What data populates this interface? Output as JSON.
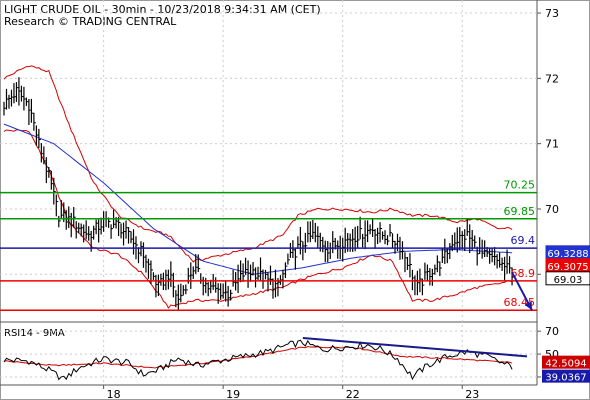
{
  "header": {
    "title": "LIGHT CRUDE OIL - 30min - 10/23/2018 9:34:31 AM (CET)",
    "subtitle": "Research © TRADING CENTRAL"
  },
  "colors": {
    "price": "#000000",
    "bollinger": "#d40000",
    "ma": "#2233cc",
    "resistance": "#009900",
    "pivot": "#1a1aaa",
    "support": "#ee0000",
    "grid": "#cccccc",
    "rsi": "#000000",
    "rsi_ma": "#cc0000",
    "trendline": "#1a1a88"
  },
  "chart_data": [
    {
      "type": "line",
      "panel": "price",
      "y_axis": {
        "min": 68.3,
        "max": 73.2,
        "ticks": [
          69,
          70,
          71,
          72,
          73
        ]
      },
      "x_axis": {
        "start": 0,
        "end": 210,
        "ticks": [
          {
            "label": "18",
            "x": 40
          },
          {
            "label": "19",
            "x": 88
          },
          {
            "label": "22",
            "x": 136
          },
          {
            "label": "23",
            "x": 184
          }
        ]
      },
      "grid": true,
      "levels": [
        {
          "value": 70.25,
          "label": "70.25",
          "role": "resistance"
        },
        {
          "value": 69.85,
          "label": "69.85",
          "role": "resistance"
        },
        {
          "value": 69.4,
          "label": "69.4",
          "role": "pivot"
        },
        {
          "value": 68.9,
          "label": "68.9",
          "role": "support"
        },
        {
          "value": 68.45,
          "label": "68.45",
          "role": "support"
        }
      ],
      "price_markers": [
        {
          "value": 69.3288,
          "label": "69.3288",
          "color": "#2233cc"
        },
        {
          "value": 69.3075,
          "label": "69.3075",
          "color": "#ee0000"
        },
        {
          "value": 69.03,
          "label": "69.03",
          "color": "#000000"
        }
      ],
      "price_anchors": [
        [
          0,
          71.6
        ],
        [
          5,
          71.8
        ],
        [
          10,
          71.6
        ],
        [
          14,
          71.0
        ],
        [
          18,
          70.5
        ],
        [
          22,
          69.9
        ],
        [
          28,
          69.8
        ],
        [
          34,
          69.6
        ],
        [
          40,
          69.8
        ],
        [
          46,
          69.75
        ],
        [
          52,
          69.5
        ],
        [
          56,
          69.3
        ],
        [
          62,
          68.8
        ],
        [
          66,
          69.0
        ],
        [
          70,
          68.6
        ],
        [
          76,
          69.1
        ],
        [
          82,
          68.8
        ],
        [
          90,
          68.7
        ],
        [
          96,
          69.0
        ],
        [
          100,
          69.05
        ],
        [
          106,
          68.9
        ],
        [
          110,
          68.8
        ],
        [
          114,
          69.2
        ],
        [
          118,
          69.4
        ],
        [
          124,
          69.6
        ],
        [
          130,
          69.4
        ],
        [
          136,
          69.5
        ],
        [
          142,
          69.6
        ],
        [
          148,
          69.7
        ],
        [
          152,
          69.6
        ],
        [
          158,
          69.5
        ],
        [
          162,
          69.2
        ],
        [
          166,
          68.8
        ],
        [
          170,
          69.0
        ],
        [
          176,
          69.2
        ],
        [
          180,
          69.5
        ],
        [
          186,
          69.6
        ],
        [
          192,
          69.3
        ],
        [
          198,
          69.2
        ],
        [
          204,
          69.03
        ]
      ],
      "ma_anchors": [
        [
          0,
          71.3
        ],
        [
          20,
          71.0
        ],
        [
          40,
          70.4
        ],
        [
          60,
          69.7
        ],
        [
          80,
          69.2
        ],
        [
          100,
          69.0
        ],
        [
          120,
          69.1
        ],
        [
          140,
          69.25
        ],
        [
          160,
          69.35
        ],
        [
          180,
          69.38
        ],
        [
          204,
          69.33
        ]
      ],
      "bollinger_upper": [
        [
          0,
          72.0
        ],
        [
          10,
          72.2
        ],
        [
          18,
          72.1
        ],
        [
          26,
          71.3
        ],
        [
          36,
          70.4
        ],
        [
          46,
          69.9
        ],
        [
          56,
          69.7
        ],
        [
          66,
          69.6
        ],
        [
          76,
          69.2
        ],
        [
          88,
          69.3
        ],
        [
          100,
          69.4
        ],
        [
          112,
          69.6
        ],
        [
          118,
          69.9
        ],
        [
          126,
          70.0
        ],
        [
          136,
          70.0
        ],
        [
          148,
          69.95
        ],
        [
          156,
          70.0
        ],
        [
          164,
          69.9
        ],
        [
          172,
          69.9
        ],
        [
          182,
          69.8
        ],
        [
          190,
          69.85
        ],
        [
          198,
          69.7
        ],
        [
          204,
          69.7
        ]
      ],
      "bollinger_lower": [
        [
          0,
          71.2
        ],
        [
          10,
          71.2
        ],
        [
          18,
          70.6
        ],
        [
          26,
          69.8
        ],
        [
          36,
          69.4
        ],
        [
          46,
          69.3
        ],
        [
          56,
          69.0
        ],
        [
          66,
          68.5
        ],
        [
          76,
          68.6
        ],
        [
          88,
          68.6
        ],
        [
          100,
          68.7
        ],
        [
          112,
          68.8
        ],
        [
          118,
          68.9
        ],
        [
          126,
          69.0
        ],
        [
          136,
          69.1
        ],
        [
          148,
          69.3
        ],
        [
          156,
          69.2
        ],
        [
          164,
          68.6
        ],
        [
          172,
          68.6
        ],
        [
          182,
          68.7
        ],
        [
          190,
          68.8
        ],
        [
          198,
          68.85
        ],
        [
          204,
          68.9
        ]
      ],
      "forecast_arrow": {
        "from": [
          204,
          69.03
        ],
        "to": [
          212,
          68.45
        ]
      }
    },
    {
      "type": "line",
      "panel": "rsi",
      "title": "RSI14 - 9MA",
      "y_axis": {
        "min": 23,
        "max": 78,
        "ticks": [
          30,
          50,
          70
        ]
      },
      "grid": true,
      "price_markers": [
        {
          "value": 42.5094,
          "label": "42.5094",
          "color": "#cc0000"
        },
        {
          "value": 39.0367,
          "label": "39.0367",
          "color": "#1a1aaa"
        }
      ],
      "rsi_anchors": [
        [
          0,
          45
        ],
        [
          10,
          44
        ],
        [
          18,
          36
        ],
        [
          24,
          28
        ],
        [
          30,
          38
        ],
        [
          40,
          46
        ],
        [
          50,
          42
        ],
        [
          56,
          32
        ],
        [
          62,
          36
        ],
        [
          70,
          46
        ],
        [
          78,
          40
        ],
        [
          86,
          44
        ],
        [
          96,
          48
        ],
        [
          106,
          52
        ],
        [
          114,
          58
        ],
        [
          120,
          60
        ],
        [
          128,
          54
        ],
        [
          136,
          56
        ],
        [
          146,
          58
        ],
        [
          152,
          54
        ],
        [
          158,
          46
        ],
        [
          164,
          30
        ],
        [
          170,
          40
        ],
        [
          178,
          48
        ],
        [
          186,
          52
        ],
        [
          194,
          48
        ],
        [
          200,
          42
        ],
        [
          204,
          39
        ]
      ],
      "rsi_ma_anchors": [
        [
          0,
          44
        ],
        [
          20,
          40
        ],
        [
          40,
          42
        ],
        [
          60,
          38
        ],
        [
          80,
          42
        ],
        [
          100,
          48
        ],
        [
          120,
          56
        ],
        [
          140,
          56
        ],
        [
          160,
          48
        ],
        [
          180,
          46
        ],
        [
          204,
          42.5
        ]
      ],
      "trendline": {
        "from": [
          120,
          64
        ],
        "to": [
          210,
          48
        ]
      }
    }
  ]
}
